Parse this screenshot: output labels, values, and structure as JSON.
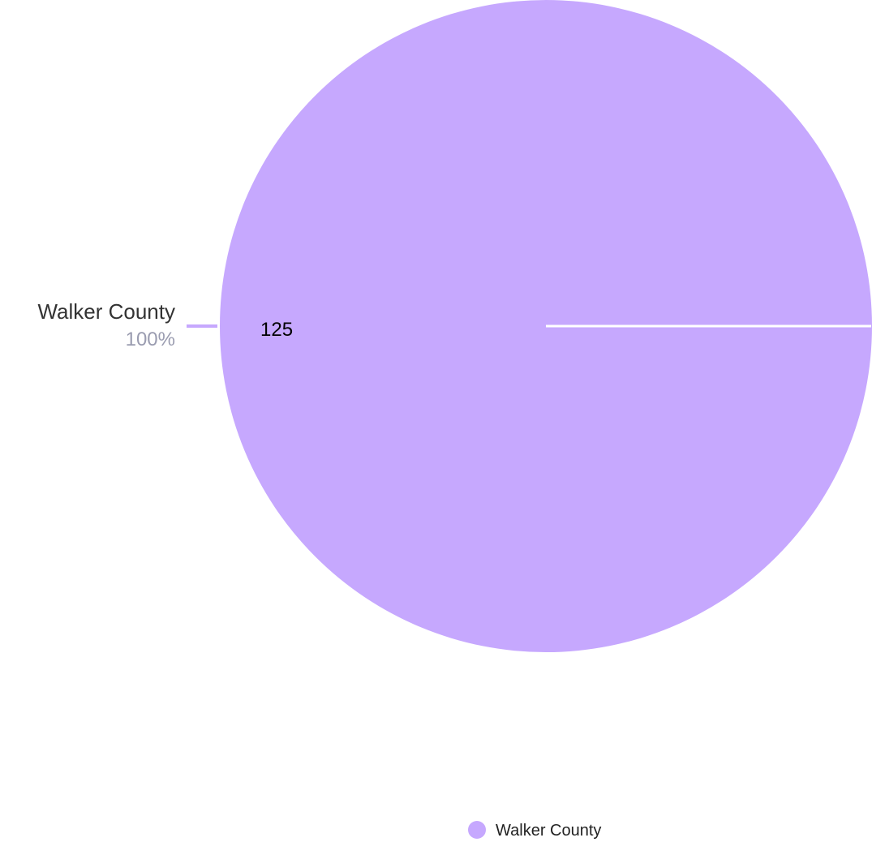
{
  "chart_data": {
    "type": "pie",
    "title": "",
    "categories": [
      "Walker County"
    ],
    "values": [
      125
    ],
    "percentages": [
      "100%"
    ],
    "colors": [
      "#c6a8fe"
    ],
    "legend": {
      "position": "bottom",
      "entries": [
        "Walker County"
      ]
    }
  }
}
